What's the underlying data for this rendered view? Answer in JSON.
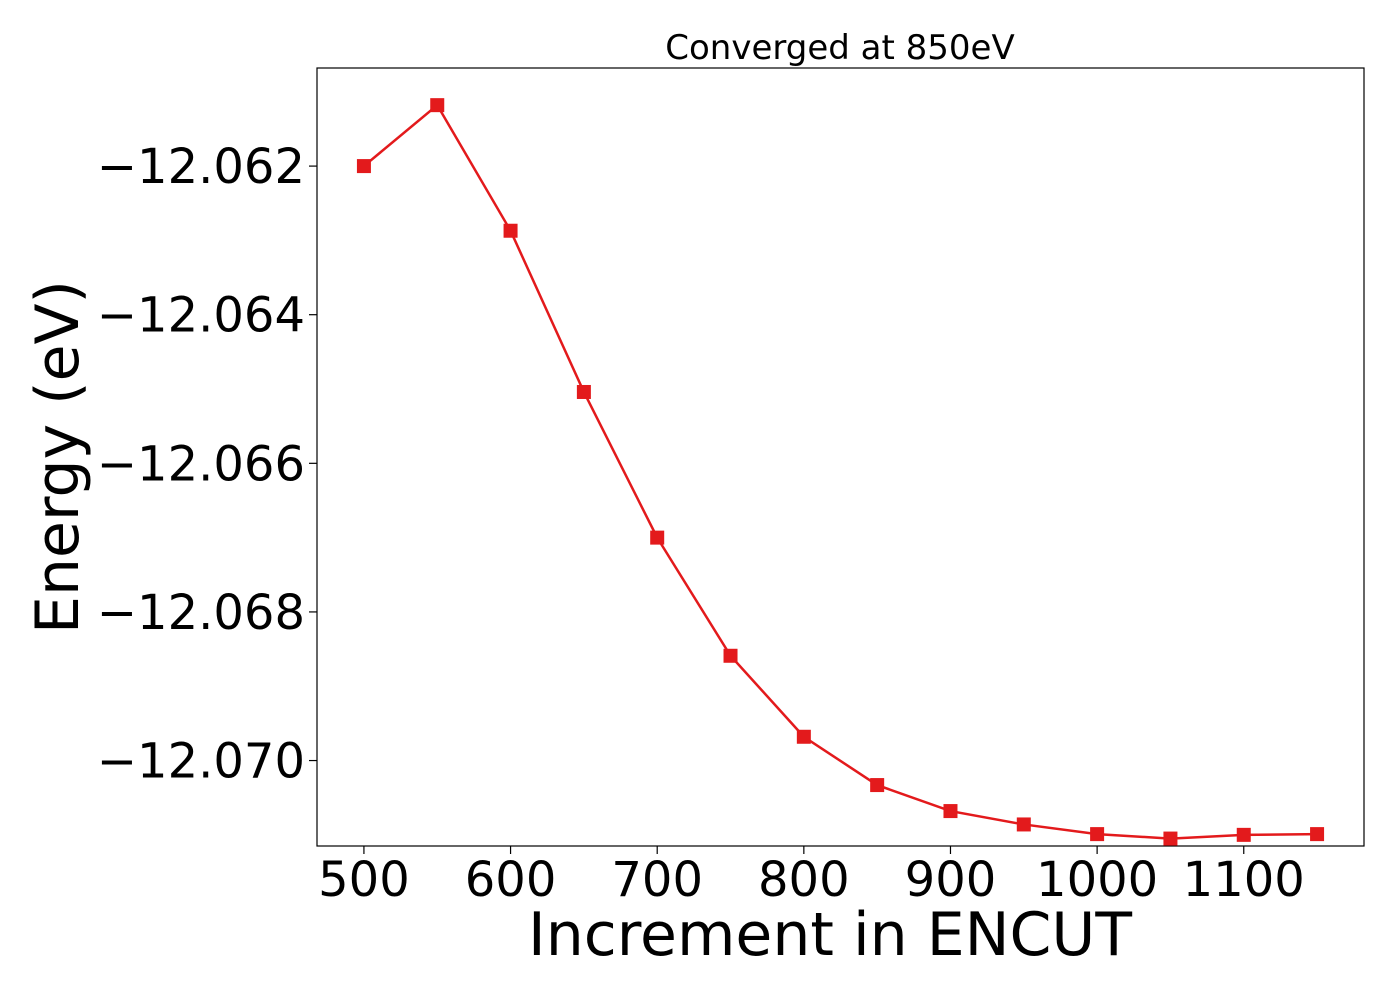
{
  "chart_data": {
    "type": "line",
    "title": "Converged at 850eV",
    "xlabel": "Increment in ENCUT",
    "ylabel": "Energy (eV)",
    "x": [
      500,
      550,
      600,
      650,
      700,
      750,
      800,
      850,
      900,
      950,
      1000,
      1050,
      1100,
      1150
    ],
    "series": [
      {
        "values": [
          -12.062,
          -12.06118,
          -12.06287,
          -12.06504,
          -12.067,
          -12.06859,
          -12.06968,
          -12.07033,
          -12.07068,
          -12.07086,
          -12.07099,
          -12.07105,
          -12.071,
          -12.07099
        ],
        "color": "#e31a1c",
        "marker": "square"
      }
    ],
    "xlim": [
      468,
      1182
    ],
    "ylim": [
      -12.07115,
      -12.06068
    ],
    "xticks": [
      500,
      600,
      700,
      800,
      900,
      1000,
      1100
    ],
    "yticks": [
      -12.062,
      -12.064,
      -12.066,
      -12.068,
      -12.07
    ],
    "ytick_labels": [
      "−12.062",
      "−12.064",
      "−12.066",
      "−12.068",
      "−12.070"
    ],
    "grid": false,
    "legend": "none"
  }
}
